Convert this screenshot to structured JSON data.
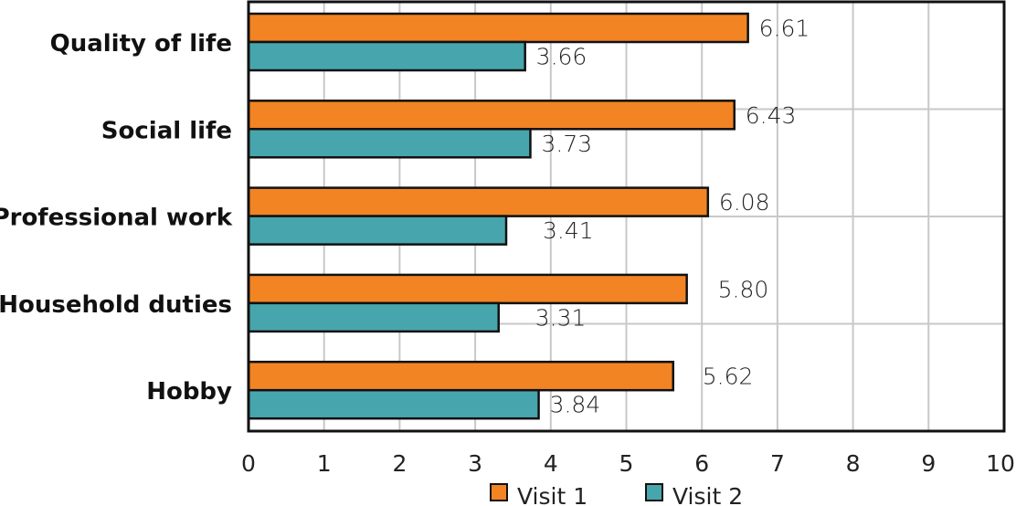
{
  "chart_data": {
    "type": "bar",
    "orientation": "horizontal",
    "title": "",
    "xlabel": "",
    "ylabel": "",
    "categories": [
      "Quality of life",
      "Social life",
      "Professional work",
      "Household duties",
      "Hobby"
    ],
    "series": [
      {
        "name": "Visit 1",
        "color": "#F28424",
        "values": [
          6.61,
          6.43,
          6.08,
          5.8,
          5.62
        ],
        "labels": [
          "6.61",
          "6.43",
          "6.08",
          "5.80",
          "5.62"
        ]
      },
      {
        "name": "Visit 2",
        "color": "#47A6AD",
        "values": [
          3.66,
          3.73,
          3.41,
          3.31,
          3.84
        ],
        "labels": [
          "3.66",
          "3.73",
          "3.41",
          "3.31",
          "3.84"
        ]
      }
    ],
    "xlim": [
      0,
      10
    ],
    "xticks": [
      "0",
      "1",
      "2",
      "3",
      "4",
      "5",
      "6",
      "7",
      "8",
      "9",
      "10"
    ],
    "grid": true,
    "legend": {
      "placement": "bottom-center",
      "entries": [
        "Visit 1",
        "Visit 2"
      ]
    },
    "gridline_color": "#C8C8C8",
    "axis_color": "#111111"
  }
}
